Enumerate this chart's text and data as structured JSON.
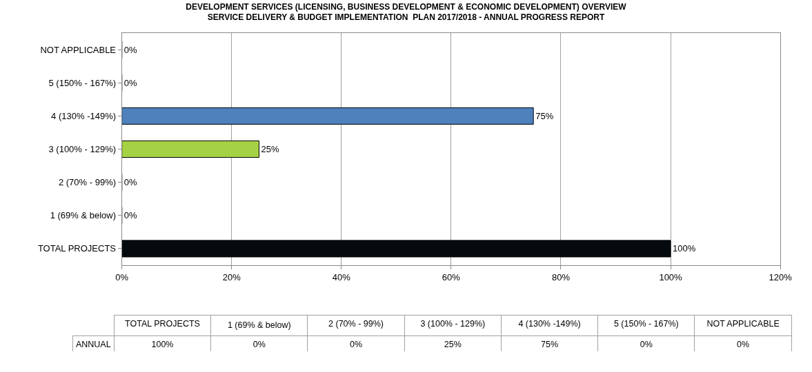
{
  "chart_data": {
    "type": "bar",
    "orientation": "horizontal",
    "title": "DEVELOPMENT SERVICES (LICENSING, BUSINESS DEVELOPMENT & ECONOMIC DEVELOPMENT) OVERVIEW\nSERVICE DELIVERY & BUDGET IMPLEMENTATION  PLAN 2017/2018 - ANNUAL PROGRESS REPORT",
    "categories": [
      "NOT APPLICABLE",
      "5 (150% - 167%)",
      "4 (130% -149%)",
      "3 (100% - 129%)",
      "2 (70% - 99%)",
      "1 (69% & below)",
      "TOTAL PROJECTS"
    ],
    "series": [
      {
        "name": "ANNUAL",
        "values": [
          0,
          0,
          75,
          25,
          0,
          0,
          100
        ],
        "value_labels": [
          "0%",
          "0%",
          "75%",
          "25%",
          "0%",
          "0%",
          "100%"
        ]
      }
    ],
    "colors": [
      "#4f81bd",
      "#9bbb59",
      "#4f81bd",
      "#a5d145",
      "#4f81bd",
      "#4f81bd",
      "#050a0f"
    ],
    "xlim": [
      0,
      120
    ],
    "xticks": [
      {
        "value": 0,
        "label": "0%"
      },
      {
        "value": 20,
        "label": "20%"
      },
      {
        "value": 40,
        "label": "40%"
      },
      {
        "value": 60,
        "label": "60%"
      },
      {
        "value": 80,
        "label": "80%"
      },
      {
        "value": 100,
        "label": "100%"
      },
      {
        "value": 120,
        "label": "120%"
      }
    ],
    "grid": "x",
    "legend": false
  }
}
